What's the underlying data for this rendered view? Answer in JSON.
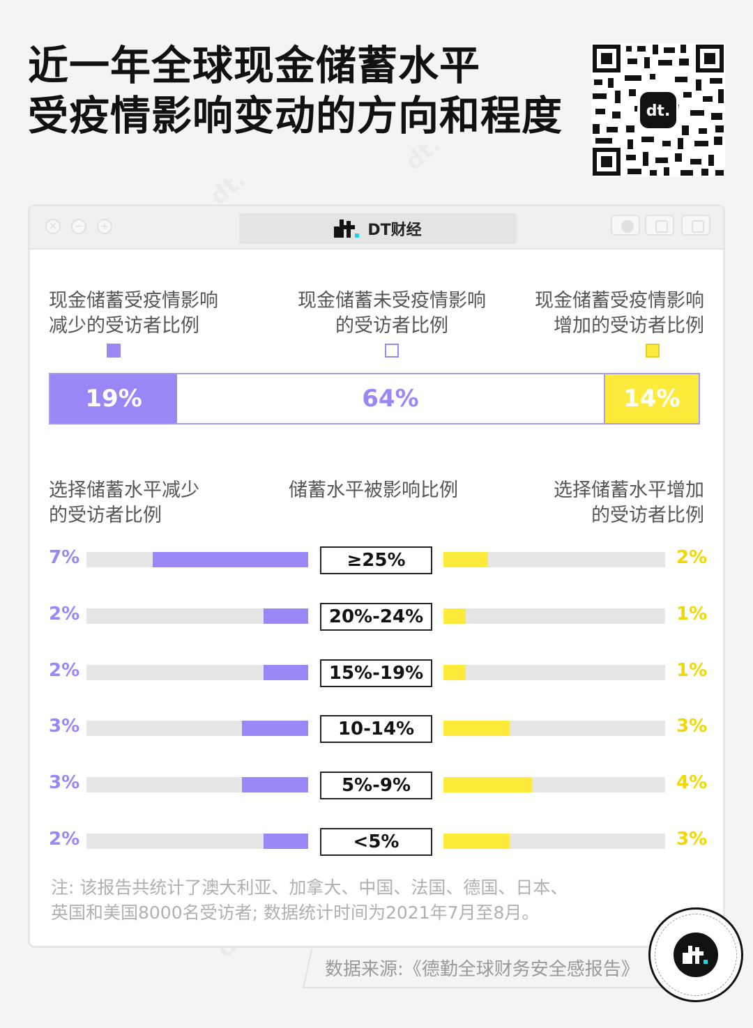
{
  "title_line1": "近一年全球现金储蓄水平",
  "title_line2": "受疫情影响变动的方向和程度",
  "brand": "DT财经",
  "colors": {
    "decrease": "#9b86f5",
    "unchanged": "#ffffff",
    "increase": "#fdeb3b",
    "track": "#e6e6e6"
  },
  "chart_data": [
    {
      "type": "bar",
      "stacked": true,
      "categories": [
        "现金储蓄受疫情影响减少的受访者比例",
        "现金储蓄未受疫情影响的受访者比例",
        "现金储蓄受疫情影响增加的受访者比例"
      ],
      "legend": {
        "decrease": [
          "现金储蓄受疫情影响",
          "减少的受访者比例"
        ],
        "unchanged": [
          "现金储蓄未受疫情影响",
          "的受访者比例"
        ],
        "increase": [
          "现金储蓄受疫情影响",
          "增加的受访者比例"
        ]
      },
      "values": [
        19,
        64,
        14
      ],
      "labels": [
        "19%",
        "64%",
        "14%"
      ]
    },
    {
      "type": "bar",
      "orientation": "horizontal-diverging",
      "left_header": [
        "选择储蓄水平减少",
        "的受访者比例"
      ],
      "center_header": "储蓄水平被影响比例",
      "right_header": [
        "选择储蓄水平增加",
        "的受访者比例"
      ],
      "categories": [
        "≥25%",
        "20%-24%",
        "15%-19%",
        "10-14%",
        "5%-9%",
        "<5%"
      ],
      "decrease_values": [
        7,
        2,
        2,
        3,
        3,
        2
      ],
      "decrease_labels": [
        "7%",
        "2%",
        "2%",
        "3%",
        "3%",
        "2%"
      ],
      "increase_values": [
        2,
        1,
        1,
        3,
        4,
        3
      ],
      "increase_labels": [
        "2%",
        "1%",
        "1%",
        "3%",
        "4%",
        "3%"
      ],
      "axis_max": 10
    }
  ],
  "note_line1": "注: 该报告共统计了澳大利亚、加拿大、中国、法国、德国、日本、",
  "note_line2": "英国和美国8000名受访者; 数据统计时间为2021年7月至8月。",
  "source": "数据来源:《德勤全球财务安全感报告》"
}
